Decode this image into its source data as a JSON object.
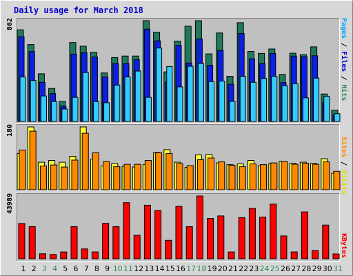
{
  "chart_data": [
    {
      "type": "bar",
      "panel": "pages-files-hits",
      "title": "Daily usage for March 2018",
      "categories": [
        "1",
        "2",
        "3",
        "4",
        "5",
        "6",
        "7",
        "8",
        "9",
        "10",
        "11",
        "12",
        "13",
        "14",
        "15",
        "16",
        "17",
        "18",
        "19",
        "20",
        "21",
        "22",
        "23",
        "24",
        "25",
        "26",
        "27",
        "28",
        "29",
        "30",
        "31"
      ],
      "weekend_days": [
        "3",
        "4",
        "10",
        "11",
        "17",
        "18",
        "24",
        "25",
        "31"
      ],
      "ymax": 862,
      "ymax_label": "862",
      "right_label_parts": [
        {
          "text": "Pages",
          "color": "#00aaff"
        },
        {
          "text": " / ",
          "color": "#000000"
        },
        {
          "text": "Files",
          "color": "#0000cc"
        },
        {
          "text": " / ",
          "color": "#000000"
        },
        {
          "text": "Hits",
          "color": "#2e8b57"
        }
      ],
      "series": [
        {
          "name": "Hits",
          "color": "#1f7a5a",
          "values": [
            784,
            658,
            408,
            282,
            172,
            675,
            644,
            592,
            415,
            547,
            560,
            560,
            862,
            764,
            424,
            687,
            815,
            862,
            578,
            757,
            386,
            845,
            599,
            582,
            620,
            402,
            584,
            571,
            638,
            235,
            96
          ]
        },
        {
          "name": "Files",
          "color": "#0b1fe6",
          "values": [
            725,
            598,
            334,
            238,
            130,
            576,
            588,
            552,
            380,
            496,
            496,
            528,
            790,
            690,
            334,
            652,
            500,
            706,
            480,
            606,
            318,
            752,
            536,
            496,
            582,
            332,
            560,
            554,
            562,
            164,
            56
          ]
        },
        {
          "name": "Pages",
          "color": "#33ccff",
          "values": [
            380,
            350,
            218,
            170,
            106,
            206,
            418,
            170,
            160,
            311,
            380,
            431,
            206,
            628,
            470,
            296,
            472,
            496,
            341,
            345,
            172,
            386,
            335,
            367,
            386,
            306,
            323,
            202,
            371,
            215,
            66
          ]
        }
      ]
    },
    {
      "type": "bar",
      "panel": "sites-visits",
      "categories": [
        "1",
        "2",
        "3",
        "4",
        "5",
        "6",
        "7",
        "8",
        "9",
        "10",
        "11",
        "12",
        "13",
        "14",
        "15",
        "16",
        "17",
        "18",
        "19",
        "20",
        "21",
        "22",
        "23",
        "24",
        "25",
        "26",
        "27",
        "28",
        "29",
        "30",
        "31"
      ],
      "ymax": 180,
      "ymax_label": "180",
      "right_label_parts": [
        {
          "text": "Sites",
          "color": "#ff8800"
        },
        {
          "text": " / ",
          "color": "#000000"
        },
        {
          "text": "Visits",
          "color": "#dddd00"
        }
      ],
      "series": [
        {
          "name": "Visits",
          "color": "#ffff33",
          "values": [
            104,
            180,
            79,
            84,
            79,
            96,
            180,
            88,
            68,
            75,
            67,
            65,
            72,
            107,
            115,
            79,
            64,
            100,
            101,
            77,
            72,
            74,
            84,
            69,
            75,
            81,
            76,
            79,
            76,
            89,
            47
          ]
        },
        {
          "name": "Sites",
          "color": "#ff8800",
          "values": [
            114,
            168,
            68,
            71,
            65,
            85,
            162,
            106,
            81,
            66,
            73,
            73,
            84,
            106,
            104,
            75,
            69,
            86,
            91,
            80,
            70,
            66,
            74,
            72,
            77,
            81,
            73,
            76,
            73,
            80,
            53
          ]
        }
      ]
    },
    {
      "type": "bar",
      "panel": "kbytes",
      "categories": [
        "1",
        "2",
        "3",
        "4",
        "5",
        "6",
        "7",
        "8",
        "9",
        "10",
        "11",
        "12",
        "13",
        "14",
        "15",
        "16",
        "17",
        "18",
        "19",
        "20",
        "21",
        "22",
        "23",
        "24",
        "25",
        "26",
        "27",
        "28",
        "29",
        "30",
        "31"
      ],
      "ymax": 43989,
      "ymax_label": "43989",
      "right_label_parts": [
        {
          "text": "KBytes",
          "color": "#ff0000"
        }
      ],
      "series": [
        {
          "name": "KBytes",
          "color": "#ff0000",
          "values": [
            24700,
            22500,
            3500,
            3000,
            4800,
            22500,
            6900,
            4800,
            24800,
            22500,
            39300,
            16500,
            37500,
            33800,
            12900,
            36700,
            22500,
            43989,
            28300,
            30000,
            4800,
            28800,
            35300,
            29200,
            38300,
            16000,
            4800,
            32800,
            5800,
            23600,
            3400
          ]
        }
      ]
    }
  ]
}
